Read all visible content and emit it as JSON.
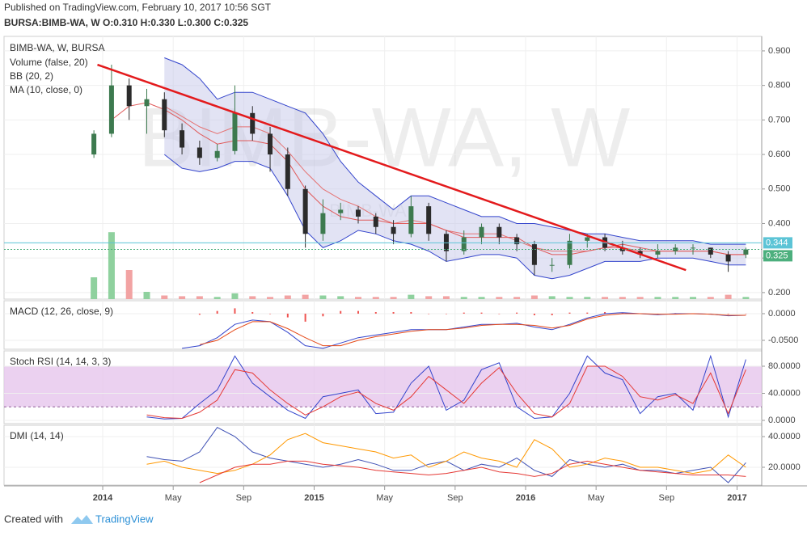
{
  "header": {
    "published": "Published on TradingView.com, February 10, 2017 10:56 SGT",
    "symbol_line": "BURSA:BIMB-WA, W  O:0.310 H:0.330 L:0.300 C:0.325"
  },
  "footer": {
    "created_with": "Created with",
    "brand": "TradingView"
  },
  "chart_data": [
    {
      "type": "candlestick",
      "title": "BIMB-WA, W, BURSA",
      "legend": [
        "Volume (false, 20)",
        "BB (20, 2)",
        "MA (10, close, 0)"
      ],
      "watermark": "BIMB-WA, W",
      "watermark_small": "BIMB-WA",
      "x": [
        -0.5,
        0.5,
        1.5,
        2.5,
        3.5,
        4.5,
        5.5,
        6.5,
        7.5,
        8.5,
        9.5,
        10.5,
        11.5,
        12.5,
        13.5,
        14.5,
        15.5,
        16.5,
        17.5,
        18.5,
        19.5,
        20.5,
        21.5,
        22.5,
        23.5,
        24.5,
        25.5,
        26.5,
        27.5,
        28.5,
        29.5,
        30.5,
        31.5,
        32.5,
        33.5,
        34.5,
        35.5,
        36.5
      ],
      "open": [
        0.6,
        0.66,
        0.8,
        0.74,
        0.76,
        0.67,
        0.62,
        0.59,
        0.61,
        0.72,
        0.66,
        0.6,
        0.5,
        0.37,
        0.43,
        0.44,
        0.42,
        0.39,
        0.37,
        0.45,
        0.37,
        0.32,
        0.36,
        0.39,
        0.36,
        0.34,
        0.28,
        0.28,
        0.35,
        0.36,
        0.33,
        0.32,
        0.31,
        0.32,
        0.33,
        0.33,
        0.31,
        0.31
      ],
      "high": [
        0.67,
        0.86,
        0.82,
        0.79,
        0.78,
        0.69,
        0.64,
        0.63,
        0.8,
        0.74,
        0.68,
        0.62,
        0.51,
        0.47,
        0.46,
        0.45,
        0.43,
        0.41,
        0.48,
        0.46,
        0.38,
        0.38,
        0.4,
        0.4,
        0.37,
        0.35,
        0.3,
        0.37,
        0.37,
        0.37,
        0.35,
        0.33,
        0.34,
        0.34,
        0.34,
        0.33,
        0.32,
        0.33
      ],
      "low": [
        0.59,
        0.65,
        0.7,
        0.66,
        0.65,
        0.6,
        0.57,
        0.58,
        0.6,
        0.64,
        0.55,
        0.48,
        0.33,
        0.35,
        0.41,
        0.4,
        0.37,
        0.34,
        0.36,
        0.35,
        0.29,
        0.31,
        0.34,
        0.34,
        0.32,
        0.25,
        0.26,
        0.27,
        0.33,
        0.32,
        0.31,
        0.3,
        0.3,
        0.31,
        0.31,
        0.3,
        0.26,
        0.3
      ],
      "close": [
        0.66,
        0.8,
        0.74,
        0.76,
        0.67,
        0.62,
        0.59,
        0.61,
        0.72,
        0.66,
        0.6,
        0.5,
        0.37,
        0.43,
        0.44,
        0.42,
        0.39,
        0.37,
        0.45,
        0.37,
        0.32,
        0.36,
        0.39,
        0.36,
        0.34,
        0.28,
        0.28,
        0.35,
        0.36,
        0.33,
        0.32,
        0.31,
        0.32,
        0.33,
        0.33,
        0.31,
        0.29,
        0.325
      ],
      "up_color": "#3d7a4f",
      "down_color": "#2b2b2b",
      "volume": {
        "ylim": [
          0,
          100
        ],
        "up_color": "#8fd19e",
        "down_color": "#f2a3a3",
        "values": [
          30,
          92,
          40,
          10,
          5,
          4,
          4,
          3,
          8,
          4,
          3,
          5,
          6,
          5,
          4,
          3,
          3,
          3,
          6,
          4,
          4,
          3,
          3,
          3,
          3,
          5,
          4,
          3,
          3,
          3,
          3,
          3,
          3,
          3,
          3,
          3,
          6,
          3
        ]
      },
      "bands": {
        "color": "#3344cc",
        "fill": "#c5c8ea",
        "upper": [
          null,
          null,
          null,
          null,
          0.88,
          0.86,
          0.82,
          0.76,
          0.78,
          0.78,
          0.76,
          0.74,
          0.72,
          0.66,
          0.58,
          0.52,
          0.48,
          0.44,
          0.48,
          0.48,
          0.46,
          0.44,
          0.42,
          0.42,
          0.4,
          0.4,
          0.39,
          0.38,
          0.37,
          0.37,
          0.36,
          0.35,
          0.35,
          0.35,
          0.35,
          0.34,
          0.34,
          0.34
        ],
        "middle": [
          null,
          null,
          null,
          null,
          0.74,
          0.71,
          0.68,
          0.66,
          0.68,
          0.68,
          0.66,
          0.61,
          0.55,
          0.5,
          0.47,
          0.45,
          0.42,
          0.4,
          0.41,
          0.4,
          0.38,
          0.37,
          0.37,
          0.37,
          0.35,
          0.33,
          0.32,
          0.32,
          0.32,
          0.33,
          0.33,
          0.32,
          0.32,
          0.32,
          0.32,
          0.32,
          0.31,
          0.31
        ],
        "lower": [
          null,
          null,
          null,
          null,
          0.6,
          0.56,
          0.55,
          0.56,
          0.58,
          0.58,
          0.56,
          0.48,
          0.38,
          0.33,
          0.35,
          0.38,
          0.37,
          0.35,
          0.34,
          0.32,
          0.29,
          0.3,
          0.31,
          0.31,
          0.3,
          0.25,
          0.24,
          0.25,
          0.27,
          0.29,
          0.29,
          0.29,
          0.3,
          0.3,
          0.3,
          0.29,
          0.28,
          0.28
        ]
      },
      "ma": {
        "color": "#e05a5a",
        "values": [
          null,
          0.7,
          0.74,
          0.75,
          0.73,
          0.7,
          0.66,
          0.63,
          0.64,
          0.64,
          0.63,
          0.58,
          0.5,
          0.45,
          0.42,
          0.41,
          0.41,
          0.4,
          0.4,
          0.4,
          0.38,
          0.36,
          0.36,
          0.36,
          0.36,
          0.33,
          0.31,
          0.31,
          0.32,
          0.33,
          0.34,
          0.33,
          0.32,
          0.32,
          0.32,
          0.32,
          0.31,
          0.31
        ]
      },
      "trendline": {
        "color": "#e31a1c",
        "x": [
          -0.3,
          33.1
        ],
        "y": [
          0.86,
          0.265
        ]
      },
      "price_lines": [
        {
          "value": 0.344,
          "color": "#5cc4d6"
        },
        {
          "value": 0.325,
          "color": "#4caf7d"
        }
      ],
      "ylim": [
        0.181,
        0.942
      ],
      "yticks": [
        {
          "value": 0.2,
          "label": "0.200"
        },
        {
          "value": 0.3,
          "label": "0.300"
        },
        {
          "value": 0.4,
          "label": "0.400"
        },
        {
          "value": 0.5,
          "label": "0.500"
        },
        {
          "value": 0.6,
          "label": "0.600"
        },
        {
          "value": 0.7,
          "label": "0.700"
        },
        {
          "value": 0.8,
          "label": "0.800"
        },
        {
          "value": 0.9,
          "label": "0.900"
        }
      ],
      "xlim": [
        -5.6,
        37.4
      ],
      "xticks": [
        {
          "value": 0,
          "label": "2014"
        },
        {
          "value": 4,
          "label": "May"
        },
        {
          "value": 8,
          "label": "Sep"
        },
        {
          "value": 12,
          "label": "2015"
        },
        {
          "value": 16,
          "label": "May"
        },
        {
          "value": 20,
          "label": "Sep"
        },
        {
          "value": 24,
          "label": "2016"
        },
        {
          "value": 28,
          "label": "May"
        },
        {
          "value": 32,
          "label": "Sep"
        },
        {
          "value": 36,
          "label": "2017"
        }
      ],
      "grid": true
    },
    {
      "type": "line",
      "title": "MACD (12, 26, close, 9)",
      "ylim": [
        -0.0667,
        0.0242
      ],
      "yticks": [
        {
          "value": -0.05,
          "label": "-0.0500"
        },
        {
          "value": 0,
          "label": "0.0000"
        }
      ],
      "histogram": {
        "color": "#ef5350",
        "values": [
          null,
          null,
          null,
          null,
          null,
          null,
          -0.002,
          0.005,
          0.01,
          0.003,
          0,
          -0.007,
          -0.015,
          -0.005,
          0.005,
          0.005,
          0.003,
          0.003,
          0.003,
          0,
          0,
          0.002,
          0.002,
          0,
          0.002,
          -0.003,
          -0.003,
          0.002,
          0.002,
          0.003,
          0.002,
          0,
          -0.001,
          0.001,
          0,
          0,
          -0.001,
          0
        ]
      },
      "series": [
        {
          "color": "#3344cc",
          "values": [
            null,
            null,
            null,
            null,
            null,
            -0.065,
            -0.06,
            -0.045,
            -0.02,
            -0.012,
            -0.015,
            -0.035,
            -0.06,
            -0.065,
            -0.055,
            -0.045,
            -0.04,
            -0.035,
            -0.03,
            -0.03,
            -0.03,
            -0.025,
            -0.02,
            -0.02,
            -0.018,
            -0.025,
            -0.03,
            -0.02,
            -0.008,
            0.0,
            0.002,
            0.0,
            -0.002,
            0.0,
            0.0,
            -0.001,
            -0.004,
            -0.003
          ]
        },
        {
          "color": "#e64a19",
          "values": [
            null,
            null,
            null,
            null,
            null,
            null,
            -0.058,
            -0.05,
            -0.03,
            -0.015,
            -0.015,
            -0.028,
            -0.045,
            -0.06,
            -0.06,
            -0.05,
            -0.043,
            -0.038,
            -0.033,
            -0.03,
            -0.03,
            -0.027,
            -0.022,
            -0.02,
            -0.02,
            -0.022,
            -0.027,
            -0.022,
            -0.01,
            -0.003,
            0.0,
            0.0,
            -0.001,
            -0.001,
            0.0,
            -0.001,
            -0.003,
            -0.003
          ]
        }
      ],
      "grid": true
    },
    {
      "type": "line",
      "title": "Stoch RSI (14, 14, 3, 3)",
      "ylim": [
        -4.8,
        102.7
      ],
      "band": [
        20,
        80
      ],
      "band_color": "#e6c6ec",
      "yticks": [
        {
          "value": 0,
          "label": "0.0000"
        },
        {
          "value": 40,
          "label": "40.0000"
        },
        {
          "value": 80,
          "label": "80.0000"
        }
      ],
      "series": [
        {
          "color": "#3344cc",
          "values": [
            null,
            null,
            null,
            5,
            2,
            3,
            25,
            45,
            95,
            55,
            35,
            15,
            3,
            35,
            40,
            45,
            10,
            12,
            55,
            80,
            15,
            30,
            75,
            85,
            20,
            3,
            5,
            40,
            95,
            70,
            60,
            10,
            35,
            40,
            15,
            95,
            5,
            90
          ]
        },
        {
          "color": "#e53935",
          "values": [
            null,
            null,
            null,
            8,
            4,
            3,
            12,
            30,
            75,
            70,
            45,
            25,
            8,
            20,
            35,
            42,
            25,
            15,
            35,
            65,
            45,
            25,
            55,
            78,
            40,
            10,
            5,
            25,
            80,
            80,
            65,
            35,
            30,
            38,
            25,
            70,
            10,
            75
          ]
        }
      ],
      "grid": true
    },
    {
      "type": "line",
      "title": "DMI (14, 14)",
      "ylim": [
        8.4,
        47.4
      ],
      "yticks": [
        {
          "value": 20,
          "label": "20.0000"
        },
        {
          "value": 40,
          "label": "40.0000"
        }
      ],
      "series": [
        {
          "color": "#3f51b5",
          "values": [
            null,
            null,
            null,
            27,
            25,
            24,
            30,
            46,
            40,
            30,
            26,
            24,
            22,
            20,
            22,
            25,
            22,
            18,
            18,
            22,
            24,
            18,
            22,
            20,
            26,
            18,
            14,
            25,
            22,
            20,
            22,
            18,
            18,
            16,
            18,
            20,
            10,
            23
          ]
        },
        {
          "color": "#ff9800",
          "values": [
            null,
            null,
            null,
            22,
            24,
            20,
            18,
            16,
            18,
            22,
            28,
            38,
            42,
            36,
            34,
            32,
            30,
            26,
            28,
            20,
            24,
            30,
            26,
            24,
            20,
            38,
            32,
            20,
            22,
            26,
            24,
            20,
            20,
            18,
            16,
            18,
            28,
            20
          ]
        },
        {
          "color": "#e53935",
          "values": [
            null,
            null,
            null,
            null,
            null,
            null,
            10,
            15,
            20,
            22,
            22,
            24,
            24,
            22,
            21,
            20,
            18,
            17,
            16,
            15,
            16,
            18,
            20,
            17,
            16,
            14,
            16,
            22,
            24,
            22,
            20,
            18,
            17,
            16,
            15,
            15,
            15,
            14
          ]
        }
      ],
      "grid": true
    }
  ]
}
